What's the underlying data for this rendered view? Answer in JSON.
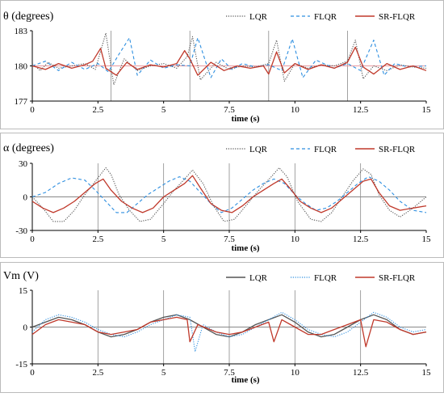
{
  "chart_data": [
    {
      "type": "line",
      "ylabel": "θ (degrees)",
      "xlabel": "time (s)",
      "xlim": [
        0,
        15
      ],
      "ylim": [
        177,
        183
      ],
      "xticks": [
        "0",
        "2.5",
        "5",
        "7.5",
        "10",
        "12.5",
        "15"
      ],
      "yticks": [
        "177",
        "180",
        "183"
      ],
      "gridlines_x": [
        3,
        6,
        9,
        12
      ],
      "reference_value": 180,
      "legend_position": "top-right",
      "series": [
        {
          "name": "LQR",
          "color": "#555555",
          "style": "dotted",
          "x": [
            0,
            0.3,
            0.6,
            1.0,
            1.5,
            2.0,
            2.4,
            2.8,
            3.1,
            3.5,
            4.0,
            4.5,
            5.0,
            5.5,
            5.9,
            6.1,
            6.4,
            7.0,
            7.5,
            8.0,
            8.5,
            9.0,
            9.3,
            9.6,
            10.0,
            10.5,
            11.0,
            11.5,
            12.0,
            12.3,
            12.6,
            13.0,
            13.5,
            14.0,
            14.5,
            15.0
          ],
          "y": [
            180.2,
            179.6,
            180.3,
            179.8,
            180.0,
            180.2,
            179.7,
            182.8,
            178.4,
            180.6,
            179.6,
            180.0,
            180.2,
            179.8,
            180.8,
            182.5,
            178.8,
            180.3,
            179.7,
            180.0,
            179.9,
            180.2,
            182.2,
            178.7,
            180.2,
            179.8,
            180.1,
            180.0,
            180.4,
            182.2,
            178.9,
            180.0,
            179.6,
            180.1,
            179.9,
            179.8
          ]
        },
        {
          "name": "FLQR",
          "color": "#2e8fe0",
          "style": "dashed",
          "x": [
            0,
            0.5,
            1.0,
            1.5,
            2.0,
            2.5,
            2.9,
            3.3,
            3.7,
            4.0,
            4.5,
            5.0,
            5.5,
            6.0,
            6.3,
            6.8,
            7.2,
            7.6,
            8.0,
            8.5,
            9.0,
            9.5,
            9.9,
            10.3,
            10.8,
            11.5,
            12.0,
            12.5,
            13.0,
            13.4,
            13.8,
            14.3,
            15.0
          ],
          "y": [
            180.0,
            180.4,
            179.6,
            180.3,
            179.7,
            180.2,
            179.5,
            181.0,
            182.4,
            179.2,
            180.5,
            179.8,
            180.1,
            180.0,
            182.4,
            179.0,
            180.6,
            179.7,
            180.2,
            179.9,
            180.1,
            179.6,
            182.3,
            179.0,
            180.5,
            179.8,
            180.2,
            179.6,
            182.2,
            179.2,
            180.2,
            179.9,
            180.0
          ]
        },
        {
          "name": "SR-FLQR",
          "color": "#c0392b",
          "style": "solid",
          "x": [
            0,
            0.5,
            1.0,
            1.5,
            2.0,
            2.3,
            2.6,
            2.8,
            3.2,
            3.6,
            4.0,
            4.5,
            5.0,
            5.5,
            5.8,
            6.0,
            6.3,
            6.8,
            7.3,
            7.8,
            8.3,
            8.8,
            9.0,
            9.3,
            9.6,
            10.0,
            10.5,
            11.0,
            11.5,
            12.0,
            12.3,
            12.6,
            13.0,
            13.5,
            14.0,
            14.5,
            15.0
          ],
          "y": [
            180.0,
            179.7,
            180.2,
            179.8,
            180.1,
            180.4,
            181.5,
            179.8,
            179.2,
            180.3,
            179.7,
            180.1,
            179.9,
            180.2,
            181.3,
            180.6,
            179.2,
            180.3,
            179.6,
            180.0,
            179.8,
            180.0,
            179.3,
            181.2,
            179.4,
            180.2,
            179.7,
            180.1,
            179.8,
            180.3,
            181.6,
            179.9,
            179.3,
            180.2,
            179.7,
            180.0,
            179.6
          ]
        }
      ]
    },
    {
      "type": "line",
      "ylabel": "α (degrees)",
      "xlabel": "time (s)",
      "xlim": [
        0,
        15
      ],
      "ylim": [
        -30,
        30
      ],
      "xticks": [
        "0",
        "2.5",
        "5",
        "7.5",
        "10",
        "12.5",
        "15"
      ],
      "yticks": [
        "-30",
        "0",
        "30"
      ],
      "gridlines_x": [
        2.5,
        5,
        7.5,
        10,
        12.5
      ],
      "legend_position": "top-right",
      "series": [
        {
          "name": "LQR",
          "color": "#555555",
          "style": "dotted",
          "x": [
            0,
            0.4,
            0.8,
            1.2,
            1.6,
            2.0,
            2.4,
            2.8,
            3.0,
            3.3,
            3.7,
            4.1,
            4.5,
            5.0,
            5.4,
            5.8,
            6.1,
            6.5,
            6.9,
            7.3,
            7.7,
            8.2,
            8.7,
            9.1,
            9.4,
            9.7,
            10.1,
            10.6,
            11.0,
            11.4,
            11.8,
            12.2,
            12.6,
            12.9,
            13.2,
            13.6,
            14.0,
            14.5,
            15.0
          ],
          "y": [
            0,
            -10,
            -22,
            -22,
            -12,
            2,
            14,
            26,
            20,
            2,
            -12,
            -22,
            -20,
            -6,
            6,
            16,
            24,
            12,
            -8,
            -22,
            -20,
            -6,
            8,
            18,
            26,
            18,
            -4,
            -20,
            -22,
            -14,
            0,
            14,
            25,
            20,
            2,
            -12,
            -18,
            -10,
            0
          ]
        },
        {
          "name": "FLQR",
          "color": "#2e8fe0",
          "style": "dashed",
          "x": [
            0,
            0.5,
            1.0,
            1.5,
            2.0,
            2.4,
            2.8,
            3.2,
            3.6,
            4.0,
            4.4,
            4.8,
            5.2,
            5.6,
            6.0,
            6.4,
            6.8,
            7.2,
            7.6,
            8.0,
            8.4,
            8.8,
            9.2,
            9.6,
            10.0,
            10.4,
            10.8,
            11.2,
            11.6,
            12.0,
            12.4,
            12.8,
            13.2,
            13.6,
            14.0,
            14.5,
            15.0
          ],
          "y": [
            0,
            4,
            12,
            17,
            15,
            6,
            -4,
            -14,
            -14,
            -6,
            2,
            8,
            14,
            18,
            14,
            4,
            -6,
            -14,
            -10,
            -2,
            6,
            12,
            16,
            12,
            2,
            -6,
            -12,
            -10,
            -4,
            4,
            12,
            18,
            14,
            6,
            -4,
            -12,
            -14
          ]
        },
        {
          "name": "SR-FLQR",
          "color": "#c0392b",
          "style": "solid",
          "x": [
            0,
            0.4,
            0.8,
            1.2,
            1.6,
            2.0,
            2.4,
            2.7,
            3.0,
            3.4,
            3.8,
            4.2,
            4.6,
            5.0,
            5.4,
            5.8,
            6.1,
            6.4,
            6.8,
            7.2,
            7.6,
            8.0,
            8.4,
            8.8,
            9.2,
            9.5,
            9.8,
            10.2,
            10.6,
            11.0,
            11.4,
            11.8,
            12.2,
            12.6,
            12.9,
            13.2,
            13.6,
            14.0,
            14.5,
            15.0
          ],
          "y": [
            -4,
            -10,
            -14,
            -10,
            -4,
            4,
            12,
            16,
            6,
            -4,
            -10,
            -14,
            -10,
            0,
            6,
            12,
            19,
            8,
            -6,
            -12,
            -14,
            -8,
            0,
            6,
            12,
            16,
            8,
            -4,
            -10,
            -14,
            -10,
            -2,
            6,
            14,
            16,
            4,
            -8,
            -12,
            -10,
            -8
          ]
        }
      ]
    },
    {
      "type": "line",
      "ylabel": "Vm (V)",
      "xlabel": "time (s)",
      "xlim": [
        0,
        15
      ],
      "ylim": [
        -15,
        15
      ],
      "xticks": [
        "0",
        "2.5",
        "5",
        "7.5",
        "10",
        "12.5",
        "15"
      ],
      "yticks": [
        "-15",
        "0",
        "15"
      ],
      "gridlines_x": [
        2.5,
        5,
        7.5,
        10,
        12.5
      ],
      "legend_position": "top-right",
      "series": [
        {
          "name": "LQR",
          "color": "#555555",
          "style": "solid",
          "x": [
            0,
            0.5,
            1.0,
            1.5,
            2.0,
            2.5,
            3.0,
            3.5,
            4.0,
            4.5,
            5.0,
            5.5,
            6.0,
            6.5,
            7.0,
            7.5,
            8.0,
            8.5,
            9.0,
            9.5,
            10.0,
            10.5,
            11.0,
            11.5,
            12.0,
            12.5,
            13.0,
            13.5,
            14.0,
            14.5,
            15.0
          ],
          "y": [
            0,
            2,
            4,
            3,
            1,
            -2,
            -4,
            -3,
            -1,
            2,
            4,
            5,
            3,
            0,
            -3,
            -4,
            -2,
            1,
            3,
            5,
            2,
            -2,
            -4,
            -3,
            0,
            3,
            5,
            3,
            -1,
            -3,
            -2
          ]
        },
        {
          "name": "FLQR",
          "color": "#2e8fe0",
          "style": "dotted",
          "x": [
            0,
            0.5,
            1.0,
            1.5,
            2.0,
            2.5,
            3.0,
            3.5,
            4.0,
            4.5,
            5.0,
            5.5,
            6.0,
            6.2,
            6.5,
            7.0,
            7.5,
            8.0,
            8.5,
            9.0,
            9.5,
            10.0,
            10.5,
            11.0,
            11.5,
            12.0,
            12.5,
            13.0,
            13.5,
            14.0,
            14.5,
            15.0
          ],
          "y": [
            -2,
            3,
            5,
            4,
            2,
            -1,
            -3,
            -4,
            -2,
            1,
            3,
            5,
            4,
            -10,
            1,
            -2,
            -4,
            -3,
            0,
            3,
            6,
            3,
            -1,
            -3,
            -4,
            -2,
            2,
            6,
            4,
            0,
            -2,
            -1
          ]
        },
        {
          "name": "SR-FLQR",
          "color": "#c0392b",
          "style": "solid",
          "x": [
            0,
            0.5,
            1.0,
            1.5,
            2.0,
            2.5,
            3.0,
            3.5,
            4.0,
            4.5,
            5.0,
            5.5,
            5.9,
            6.0,
            6.3,
            7.0,
            7.5,
            8.0,
            8.5,
            9.0,
            9.2,
            9.5,
            10.0,
            10.5,
            11.0,
            11.5,
            12.0,
            12.5,
            12.7,
            13.0,
            13.5,
            14.0,
            14.5,
            15.0
          ],
          "y": [
            -3,
            1,
            3,
            2,
            1,
            -2,
            -3,
            -2,
            -1,
            2,
            3,
            4,
            3,
            -6,
            1,
            -2,
            -3,
            -2,
            0,
            2,
            -6,
            3,
            0,
            -3,
            -3,
            -1,
            1,
            3,
            -8,
            3,
            2,
            -1,
            -3,
            -2
          ]
        }
      ]
    }
  ]
}
